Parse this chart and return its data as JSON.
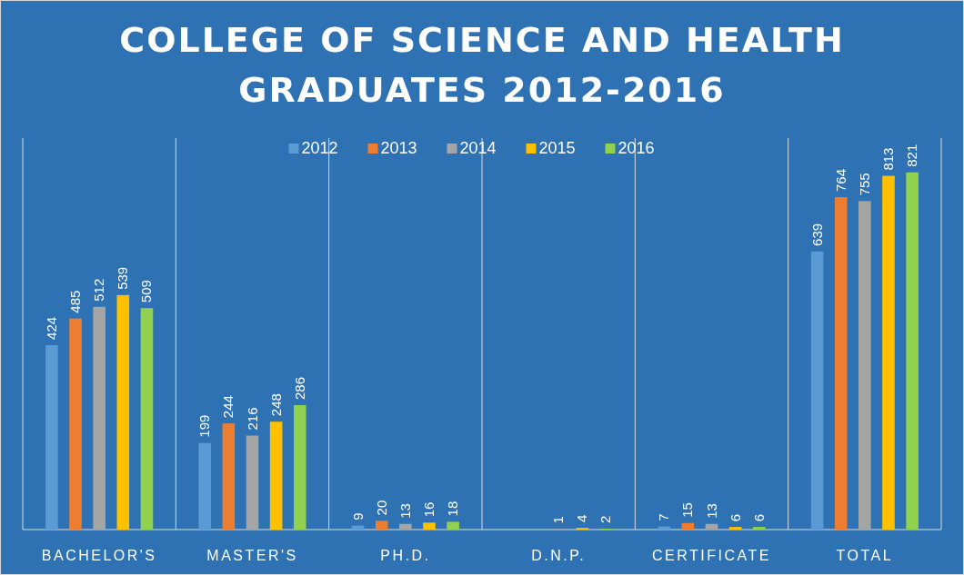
{
  "chart_data": {
    "type": "bar",
    "title": "COLLEGE OF SCIENCE AND HEALTH GRADUATES 2012-2016",
    "categories": [
      "BACHELOR'S",
      "MASTER'S",
      "PH.D.",
      "D.N.P.",
      "CERTIFICATE",
      "TOTAL"
    ],
    "series": [
      {
        "name": "2012",
        "color": "#5b9bd5",
        "values": [
          424,
          199,
          9,
          null,
          7,
          639
        ]
      },
      {
        "name": "2013",
        "color": "#ed7d31",
        "values": [
          485,
          244,
          20,
          null,
          15,
          764
        ]
      },
      {
        "name": "2014",
        "color": "#a5a5a5",
        "values": [
          512,
          216,
          13,
          1,
          13,
          755
        ]
      },
      {
        "name": "2015",
        "color": "#ffc000",
        "values": [
          539,
          248,
          16,
          4,
          6,
          813
        ]
      },
      {
        "name": "2016",
        "color": "#92d050",
        "values": [
          509,
          286,
          18,
          2,
          6,
          821
        ]
      }
    ],
    "data_labels": true,
    "grid": "x",
    "legend": "top"
  }
}
